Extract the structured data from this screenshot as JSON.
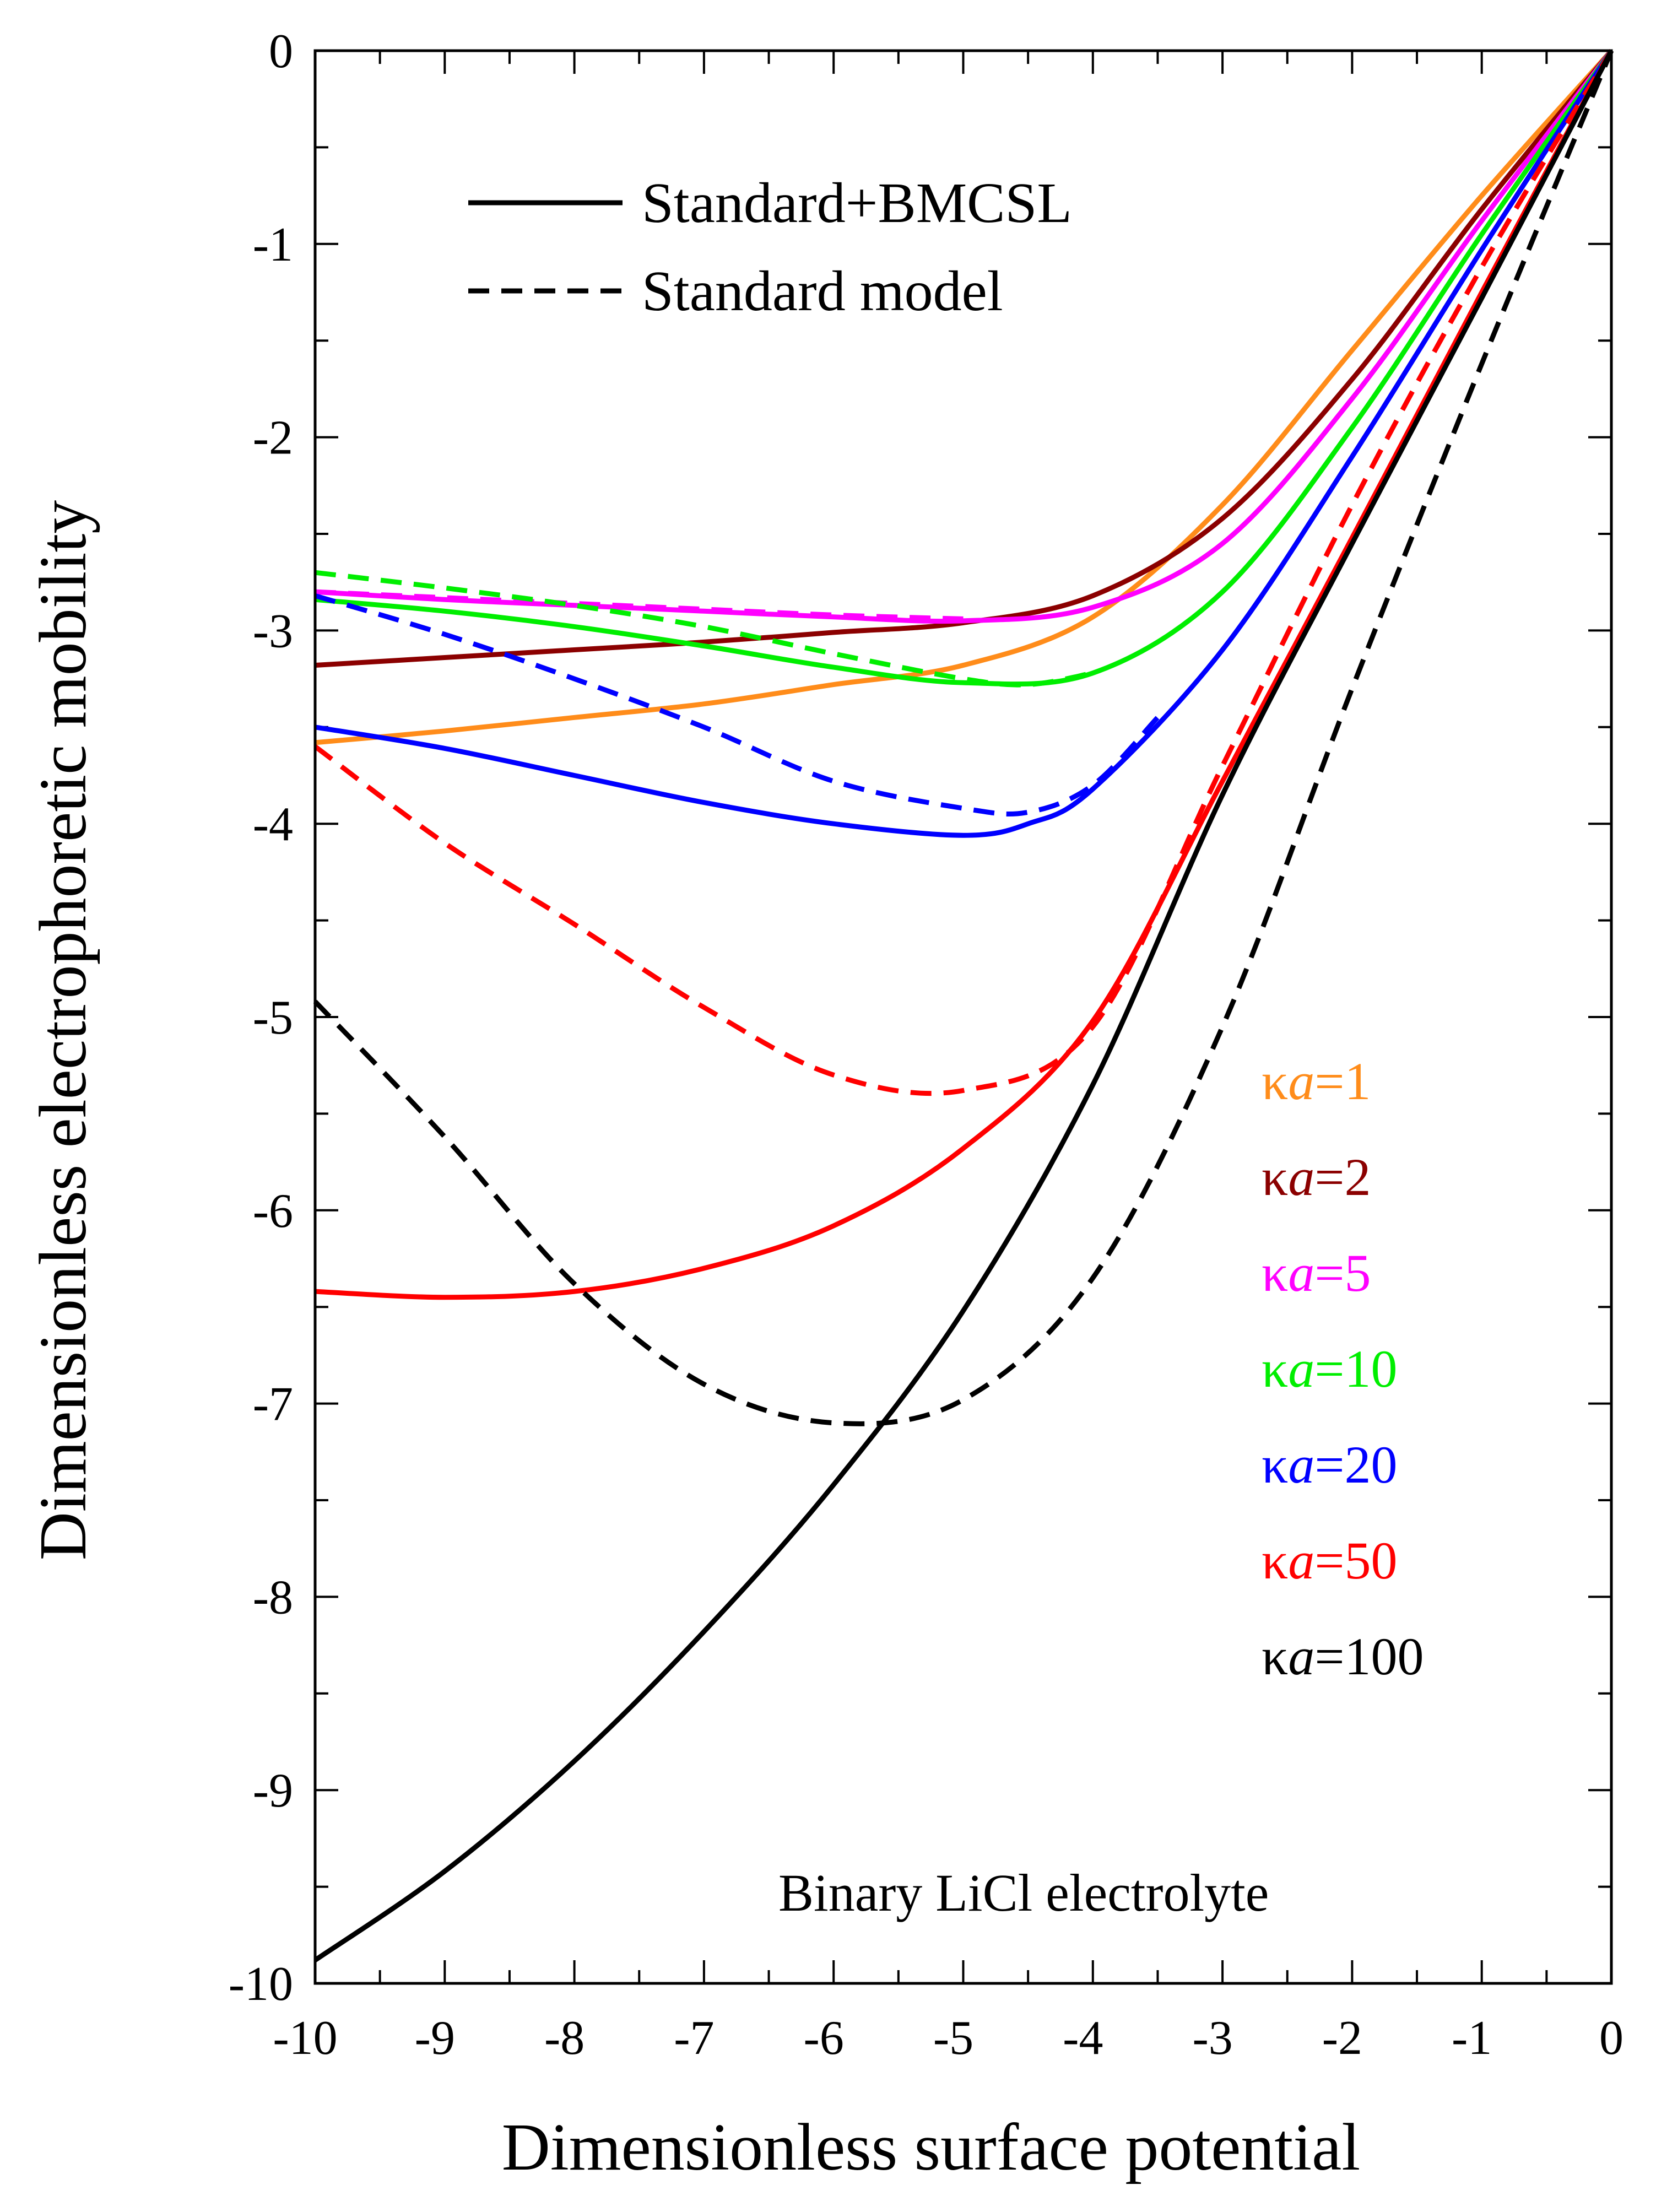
{
  "chart_data": {
    "type": "line",
    "xlabel": "Dimensionless surface potential",
    "ylabel": "Dimensionless electrophoretic mobility",
    "xlim": [
      -10,
      0
    ],
    "ylim": [
      -10,
      0
    ],
    "x_ticks": [
      "-10",
      "-9",
      "-8",
      "-7",
      "-6",
      "-5",
      "-4",
      "-3",
      "-2",
      "-1",
      "0"
    ],
    "y_ticks": [
      "0",
      "-1",
      "-2",
      "-3",
      "-4",
      "-5",
      "-6",
      "-7",
      "-8",
      "-9",
      "-10"
    ],
    "legend": {
      "solid_label": "Standard+BMCSL",
      "dashed_label": "Standard model"
    },
    "annotation": "Binary LiCl electrolyte",
    "ka_symbol": "κ",
    "ka_var": "a",
    "series": [
      {
        "name": "κa=1",
        "value_text": "=1",
        "color": "#ff8c1a",
        "solid": [
          [
            -10,
            -3.58
          ],
          [
            -9,
            -3.52
          ],
          [
            -8,
            -3.45
          ],
          [
            -7,
            -3.38
          ],
          [
            -6,
            -3.28
          ],
          [
            -5,
            -3.18
          ],
          [
            -4,
            -2.93
          ],
          [
            -3,
            -2.35
          ],
          [
            -2,
            -1.55
          ],
          [
            -1,
            -0.75
          ],
          [
            0,
            0
          ]
        ],
        "dashed": []
      },
      {
        "name": "κa=2",
        "value_text": "=2",
        "color": "#8b0000",
        "solid": [
          [
            -10,
            -3.18
          ],
          [
            -9,
            -3.14
          ],
          [
            -8,
            -3.1
          ],
          [
            -7,
            -3.06
          ],
          [
            -6,
            -3.01
          ],
          [
            -5,
            -2.96
          ],
          [
            -4,
            -2.82
          ],
          [
            -3,
            -2.42
          ],
          [
            -2,
            -1.7
          ],
          [
            -1,
            -0.82
          ],
          [
            0,
            0
          ]
        ],
        "dashed": []
      },
      {
        "name": "κa=5",
        "value_text": "=5",
        "color": "#ff00ff",
        "solid": [
          [
            -10,
            -2.8
          ],
          [
            -9,
            -2.84
          ],
          [
            -8,
            -2.87
          ],
          [
            -7,
            -2.9
          ],
          [
            -6,
            -2.93
          ],
          [
            -5,
            -2.95
          ],
          [
            -4,
            -2.88
          ],
          [
            -3,
            -2.55
          ],
          [
            -2,
            -1.8
          ],
          [
            -1,
            -0.88
          ],
          [
            0,
            0
          ]
        ],
        "dashed": [
          [
            -10,
            -2.8
          ],
          [
            -9,
            -2.83
          ],
          [
            -8,
            -2.86
          ],
          [
            -7,
            -2.89
          ],
          [
            -6,
            -2.92
          ],
          [
            -5,
            -2.94
          ]
        ]
      },
      {
        "name": "κa=10",
        "value_text": "=10",
        "color": "#00ee00",
        "solid": [
          [
            -10,
            -2.84
          ],
          [
            -9,
            -2.9
          ],
          [
            -8,
            -2.98
          ],
          [
            -7,
            -3.08
          ],
          [
            -6,
            -3.19
          ],
          [
            -5,
            -3.27
          ],
          [
            -4,
            -3.22
          ],
          [
            -3,
            -2.8
          ],
          [
            -2,
            -1.95
          ],
          [
            -1,
            -0.95
          ],
          [
            0,
            0
          ]
        ],
        "dashed": [
          [
            -10,
            -2.7
          ],
          [
            -9,
            -2.78
          ],
          [
            -8,
            -2.87
          ],
          [
            -7,
            -2.98
          ],
          [
            -6,
            -3.12
          ],
          [
            -5,
            -3.25
          ],
          [
            -4.5,
            -3.28
          ],
          [
            -4,
            -3.22
          ]
        ]
      },
      {
        "name": "κa=20",
        "value_text": "=20",
        "color": "#0000ff",
        "solid": [
          [
            -10,
            -3.5
          ],
          [
            -9,
            -3.61
          ],
          [
            -8,
            -3.75
          ],
          [
            -7,
            -3.89
          ],
          [
            -6,
            -4.0
          ],
          [
            -5,
            -4.06
          ],
          [
            -4.5,
            -4.0
          ],
          [
            -4,
            -3.82
          ],
          [
            -3,
            -3.1
          ],
          [
            -2,
            -2.1
          ],
          [
            -1,
            -1.03
          ],
          [
            0,
            0
          ]
        ],
        "dashed": [
          [
            -10,
            -2.82
          ],
          [
            -9,
            -3.02
          ],
          [
            -8,
            -3.25
          ],
          [
            -7,
            -3.5
          ],
          [
            -6,
            -3.78
          ],
          [
            -5,
            -3.92
          ],
          [
            -4.5,
            -3.94
          ],
          [
            -4,
            -3.8
          ],
          [
            -3.5,
            -3.45
          ]
        ]
      },
      {
        "name": "κa=50",
        "value_text": "=50",
        "color": "#ff0000",
        "solid": [
          [
            -10,
            -6.42
          ],
          [
            -9,
            -6.45
          ],
          [
            -8,
            -6.42
          ],
          [
            -7,
            -6.3
          ],
          [
            -6,
            -6.08
          ],
          [
            -5,
            -5.68
          ],
          [
            -4,
            -5.02
          ],
          [
            -3,
            -3.78
          ],
          [
            -2,
            -2.52
          ],
          [
            -1,
            -1.25
          ],
          [
            0,
            0
          ]
        ],
        "dashed": [
          [
            -10,
            -3.6
          ],
          [
            -9,
            -4.1
          ],
          [
            -8,
            -4.52
          ],
          [
            -7,
            -4.95
          ],
          [
            -6,
            -5.3
          ],
          [
            -5,
            -5.38
          ],
          [
            -4,
            -5.05
          ],
          [
            -3,
            -3.7
          ],
          [
            -2,
            -2.35
          ],
          [
            -1,
            -1.12
          ],
          [
            0,
            0
          ]
        ]
      },
      {
        "name": "κa=100",
        "value_text": "=100",
        "color": "#000000",
        "solid": [
          [
            -10,
            -9.88
          ],
          [
            -9,
            -9.42
          ],
          [
            -8,
            -8.85
          ],
          [
            -7,
            -8.18
          ],
          [
            -6,
            -7.42
          ],
          [
            -5,
            -6.52
          ],
          [
            -4,
            -5.35
          ],
          [
            -3,
            -3.85
          ],
          [
            -2,
            -2.55
          ],
          [
            -1,
            -1.28
          ],
          [
            0,
            0
          ]
        ],
        "dashed": [
          [
            -10,
            -4.92
          ],
          [
            -9,
            -5.62
          ],
          [
            -8,
            -6.38
          ],
          [
            -7,
            -6.9
          ],
          [
            -6,
            -7.1
          ],
          [
            -5,
            -6.98
          ],
          [
            -4,
            -6.35
          ],
          [
            -3,
            -5.05
          ],
          [
            -2,
            -3.3
          ],
          [
            -1,
            -1.62
          ],
          [
            0,
            0
          ]
        ]
      }
    ]
  }
}
